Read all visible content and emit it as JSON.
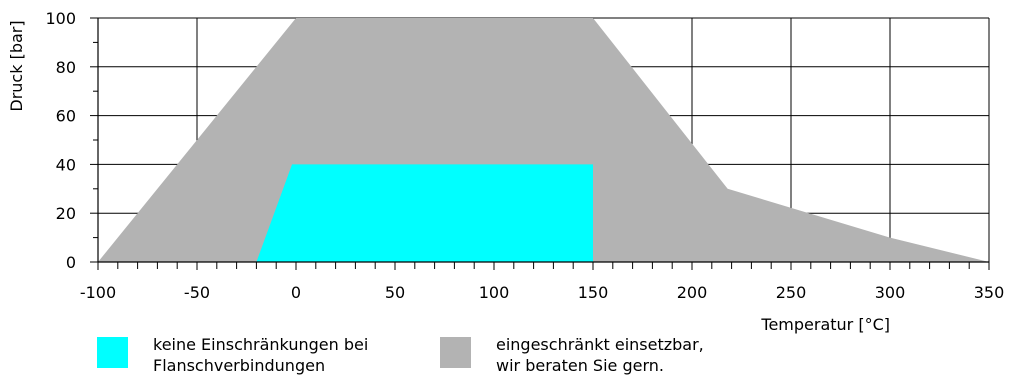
{
  "chart_data": {
    "type": "area",
    "title": "",
    "xlabel": "Temperatur [°C]",
    "ylabel": "Druck [bar]",
    "xlim": [
      -100,
      350
    ],
    "ylim": [
      0,
      100
    ],
    "x_ticks": [
      -100,
      -50,
      0,
      50,
      100,
      150,
      200,
      250,
      300,
      350
    ],
    "y_ticks": [
      0,
      20,
      40,
      60,
      80,
      100
    ],
    "x_tick_labels": [
      "-100",
      "-50",
      "0",
      "50",
      "100",
      "150",
      "200",
      "250",
      "300",
      "350"
    ],
    "y_tick_labels": [
      "0",
      "20",
      "40",
      "60",
      "80",
      "100"
    ],
    "grid": true,
    "series": [
      {
        "key": "restricted",
        "color": "#b3b3b3",
        "points": [
          [
            -100,
            0
          ],
          [
            0,
            100
          ],
          [
            150,
            100
          ],
          [
            218,
            30
          ],
          [
            300,
            10
          ],
          [
            350,
            0
          ]
        ]
      },
      {
        "key": "unrestricted",
        "color": "#00ffff",
        "points": [
          [
            -20,
            0
          ],
          [
            -2,
            40
          ],
          [
            150,
            40
          ],
          [
            150,
            0
          ]
        ]
      }
    ],
    "legend": [
      {
        "label": "keine Einschränkungen bei\nFlanschverbindungen",
        "color": "#00ffff"
      },
      {
        "label": "eingeschränkt einsetzbar,\nwir beraten Sie gern.",
        "color": "#b3b3b3"
      }
    ]
  }
}
